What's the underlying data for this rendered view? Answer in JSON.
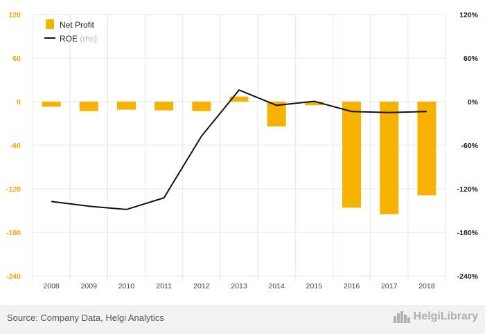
{
  "chart_data": {
    "type": "bar",
    "categories": [
      "2008",
      "2009",
      "2010",
      "2011",
      "2012",
      "2013",
      "2014",
      "2015",
      "2016",
      "2017",
      "2018"
    ],
    "series": [
      {
        "name": "Net Profit",
        "type": "bar",
        "axis": "left",
        "color": "#f7b200",
        "values": [
          -7,
          -13,
          -11,
          -12,
          -13,
          7,
          -34,
          -5,
          -146,
          -155,
          -129
        ]
      },
      {
        "name": "ROE",
        "name_suffix": "(rhs)",
        "type": "line",
        "axis": "right",
        "color": "#111111",
        "values": [
          -137.5,
          -144,
          -148.5,
          -132.5,
          -47.5,
          16,
          -5,
          0.5,
          -13.5,
          -15,
          -13.5
        ]
      }
    ],
    "left_axis": {
      "ticks": [
        "120",
        "60",
        "0",
        "-60",
        "-120",
        "-180",
        "-240"
      ],
      "range": [
        -240,
        120
      ]
    },
    "right_axis": {
      "ticks": [
        "120%",
        "60%",
        "0%",
        "-60%",
        "-120%",
        "-180%",
        "-240%"
      ],
      "range": [
        -240,
        120
      ]
    },
    "legend_position": "top-left",
    "grid": true
  },
  "footer": {
    "source": "Source: Company Data, Helgi Analytics",
    "brand": "HelgiLibrary",
    "brand_icon": "city-skyline-icon"
  }
}
